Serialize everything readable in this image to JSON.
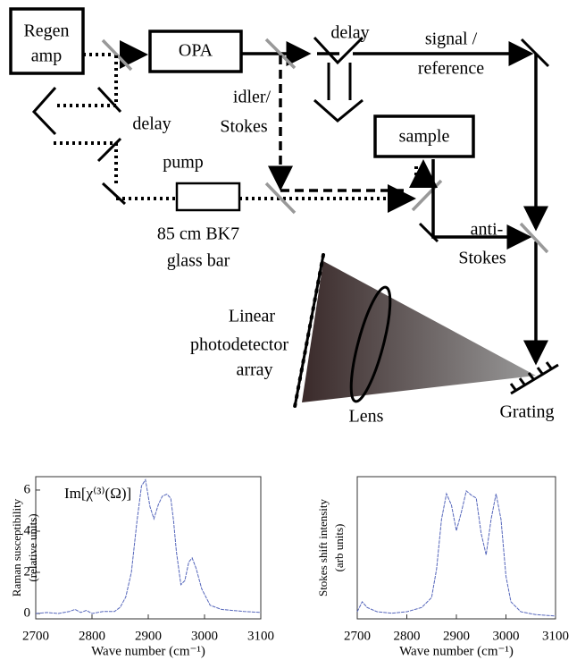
{
  "diagram": {
    "labels": {
      "regen_amp": [
        "Regen",
        "amp"
      ],
      "opa": "OPA",
      "delay_top": "delay",
      "signal_reference": [
        "signal /",
        "reference"
      ],
      "idler_stokes": [
        "idler/",
        "Stokes"
      ],
      "delay_left": "delay",
      "sample": "sample",
      "pump": "pump",
      "glass_bar": [
        "85 cm BK7",
        "glass bar"
      ],
      "anti_stokes": [
        "anti-",
        "Stokes"
      ],
      "detector": [
        "Linear",
        "photodetector",
        "array"
      ],
      "lens": "Lens",
      "grating": "Grating"
    }
  },
  "chart_data": [
    {
      "type": "line",
      "ylabel": [
        "Raman susceptibility",
        "(relative units)"
      ],
      "xlabel": "Wave number (cm⁻¹)",
      "annotation": "Im[χ⁽³⁾(Ω)]",
      "x": [
        2700,
        2720,
        2740,
        2760,
        2770,
        2780,
        2790,
        2800,
        2820,
        2840,
        2850,
        2860,
        2870,
        2880,
        2888,
        2895,
        2903,
        2910,
        2918,
        2925,
        2933,
        2940,
        2945,
        2950,
        2958,
        2965,
        2972,
        2978,
        2985,
        2995,
        3010,
        3030,
        3050,
        3070,
        3100
      ],
      "series": [
        {
          "color": "#5566bb",
          "values": [
            0,
            0.05,
            0,
            0.1,
            0.2,
            0.05,
            0.15,
            0,
            0.1,
            0.1,
            0.3,
            0.8,
            2.0,
            4.5,
            6.2,
            6.5,
            5.2,
            4.6,
            5.3,
            5.7,
            5.8,
            5.6,
            4.5,
            3.0,
            1.4,
            1.6,
            2.5,
            2.7,
            2.2,
            1.2,
            0.4,
            0.2,
            0.15,
            0.1,
            0.05
          ]
        }
      ],
      "xlim": [
        2700,
        3100
      ],
      "xticks": [
        2700,
        2800,
        2900,
        3000,
        3100
      ],
      "ylim": [
        -0.26,
        6.65
      ],
      "yticks": [
        0,
        2,
        4,
        6
      ]
    },
    {
      "type": "line",
      "ylabel": [
        "Stokes shift intensity",
        "(arb units)"
      ],
      "xlabel": "Wave number (cm⁻¹)",
      "x": [
        2700,
        2710,
        2720,
        2740,
        2770,
        2800,
        2830,
        2850,
        2860,
        2870,
        2880,
        2890,
        2900,
        2910,
        2920,
        2930,
        2940,
        2950,
        2960,
        2970,
        2980,
        2990,
        3000,
        3010,
        3030,
        3060,
        3100
      ],
      "series": [
        {
          "color": "#5566bb",
          "values": [
            0.05,
            0.12,
            0.08,
            0.05,
            0.04,
            0.05,
            0.08,
            0.15,
            0.35,
            0.7,
            0.88,
            0.8,
            0.62,
            0.75,
            0.9,
            0.87,
            0.85,
            0.6,
            0.45,
            0.7,
            0.88,
            0.7,
            0.3,
            0.12,
            0.05,
            0.03,
            0.02
          ]
        }
      ],
      "xlim": [
        2700,
        3100
      ],
      "xticks": [
        2700,
        2800,
        2900,
        3000,
        3100
      ],
      "ylim": [
        0,
        1
      ]
    }
  ]
}
